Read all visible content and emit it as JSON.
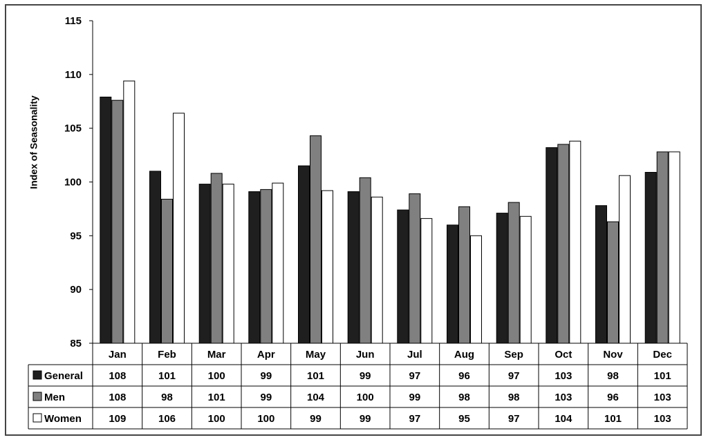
{
  "chart_data": {
    "type": "bar",
    "ylabel": "Index of Seasonality",
    "ylim": [
      85,
      115
    ],
    "yticks": [
      85,
      90,
      95,
      100,
      105,
      110,
      115
    ],
    "grid": false,
    "legend": "data-table",
    "categories": [
      "Jan",
      "Feb",
      "Mar",
      "Apr",
      "May",
      "Jun",
      "Jul",
      "Aug",
      "Sep",
      "Oct",
      "Nov",
      "Dec"
    ],
    "series": [
      {
        "name": "General",
        "color": "#1f1f1f",
        "values": [
          107.9,
          101.0,
          99.8,
          99.1,
          101.5,
          99.1,
          97.4,
          96.0,
          97.1,
          103.2,
          97.8,
          100.9
        ],
        "table": [
          "108",
          "101",
          "100",
          "99",
          "101",
          "99",
          "97",
          "96",
          "97",
          "103",
          "98",
          "101"
        ]
      },
      {
        "name": "Men",
        "color": "#808080",
        "values": [
          107.6,
          98.4,
          100.8,
          99.3,
          104.3,
          100.4,
          98.9,
          97.7,
          98.1,
          103.5,
          96.3,
          102.8
        ],
        "table": [
          "108",
          "98",
          "101",
          "99",
          "104",
          "100",
          "99",
          "98",
          "98",
          "103",
          "96",
          "103"
        ]
      },
      {
        "name": "Women",
        "color": "#ffffff",
        "values": [
          109.4,
          106.4,
          99.8,
          99.9,
          99.2,
          98.6,
          96.6,
          95.0,
          96.8,
          103.8,
          100.6,
          102.8
        ],
        "table": [
          "109",
          "106",
          "100",
          "100",
          "99",
          "99",
          "97",
          "95",
          "97",
          "104",
          "101",
          "103"
        ]
      }
    ]
  }
}
